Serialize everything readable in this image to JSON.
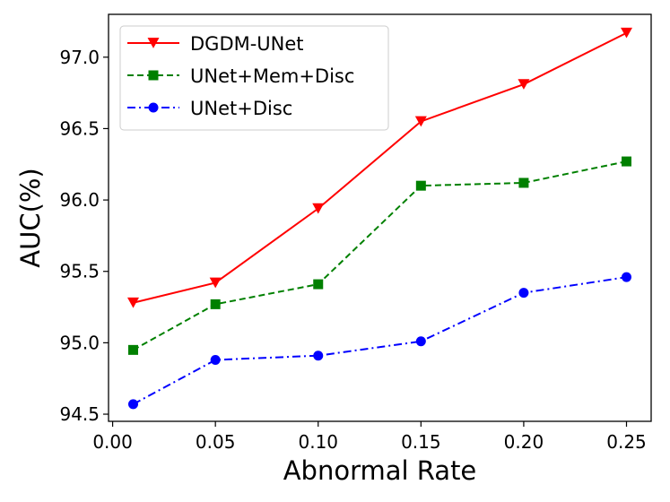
{
  "chart_data": {
    "type": "line",
    "title": "",
    "xlabel": "Abnormal Rate",
    "ylabel": "AUC(%)",
    "xlim": [
      -0.002,
      0.262
    ],
    "ylim": [
      94.45,
      97.3
    ],
    "xticks": [
      0.0,
      0.05,
      0.1,
      0.15,
      0.2,
      0.25
    ],
    "xtick_labels": [
      "0.00",
      "0.05",
      "0.10",
      "0.15",
      "0.20",
      "0.25"
    ],
    "yticks": [
      94.5,
      95.0,
      95.5,
      96.0,
      96.5,
      97.0
    ],
    "ytick_labels": [
      "94.5",
      "95.0",
      "95.5",
      "96.0",
      "96.5",
      "97.0"
    ],
    "x": [
      0.01,
      0.05,
      0.1,
      0.15,
      0.2,
      0.25
    ],
    "grid": false,
    "legend_position": "top-left",
    "series": [
      {
        "name": "DGDM-UNet",
        "values": [
          95.28,
          95.42,
          95.94,
          96.55,
          96.81,
          97.17
        ],
        "color": "#ff0000",
        "linestyle": "solid",
        "marker": "triangle-down"
      },
      {
        "name": "UNet+Mem+Disc",
        "values": [
          94.95,
          95.27,
          95.41,
          96.1,
          96.12,
          96.27
        ],
        "color": "#008000",
        "linestyle": "dashed",
        "marker": "square"
      },
      {
        "name": "UNet+Disc",
        "values": [
          94.57,
          94.88,
          94.91,
          95.01,
          95.35,
          95.46
        ],
        "color": "#0000ff",
        "linestyle": "dashdot",
        "marker": "circle"
      }
    ]
  }
}
